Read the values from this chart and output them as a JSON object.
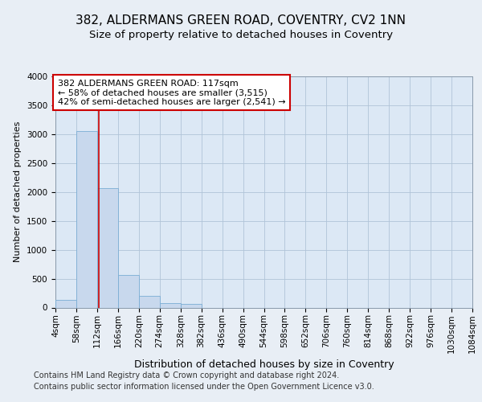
{
  "title1": "382, ALDERMANS GREEN ROAD, COVENTRY, CV2 1NN",
  "title2": "Size of property relative to detached houses in Coventry",
  "xlabel": "Distribution of detached houses by size in Coventry",
  "ylabel": "Number of detached properties",
  "footer1": "Contains HM Land Registry data © Crown copyright and database right 2024.",
  "footer2": "Contains public sector information licensed under the Open Government Licence v3.0.",
  "annotation_line1": "382 ALDERMANS GREEN ROAD: 117sqm",
  "annotation_line2": "← 58% of detached houses are smaller (3,515)",
  "annotation_line3": "42% of semi-detached houses are larger (2,541) →",
  "property_size": 117,
  "bin_edges": [
    4,
    58,
    112,
    166,
    220,
    274,
    328,
    382,
    436,
    490,
    544,
    598,
    652,
    706,
    760,
    814,
    868,
    922,
    976,
    1030,
    1084
  ],
  "bin_labels": [
    "4sqm",
    "58sqm",
    "112sqm",
    "166sqm",
    "220sqm",
    "274sqm",
    "328sqm",
    "382sqm",
    "436sqm",
    "490sqm",
    "544sqm",
    "598sqm",
    "652sqm",
    "706sqm",
    "760sqm",
    "814sqm",
    "868sqm",
    "922sqm",
    "976sqm",
    "1030sqm",
    "1084sqm"
  ],
  "bar_heights": [
    130,
    3060,
    2070,
    560,
    200,
    80,
    60,
    0,
    0,
    0,
    0,
    0,
    0,
    0,
    0,
    0,
    0,
    0,
    0,
    0
  ],
  "bar_color": "#c8d8ed",
  "bar_edge_color": "#7aadd4",
  "vline_color": "#cc0000",
  "vline_x": 117,
  "ylim": [
    0,
    4000
  ],
  "yticks": [
    0,
    500,
    1000,
    1500,
    2000,
    2500,
    3000,
    3500,
    4000
  ],
  "bg_color": "#e8eef5",
  "plot_bg_color": "#dce8f5",
  "grid_color": "#b0c4d8",
  "annotation_box_color": "#cc0000",
  "title1_fontsize": 11,
  "title2_fontsize": 9.5,
  "xlabel_fontsize": 9,
  "ylabel_fontsize": 8,
  "tick_fontsize": 7.5,
  "footer_fontsize": 7,
  "ann_fontsize": 8
}
